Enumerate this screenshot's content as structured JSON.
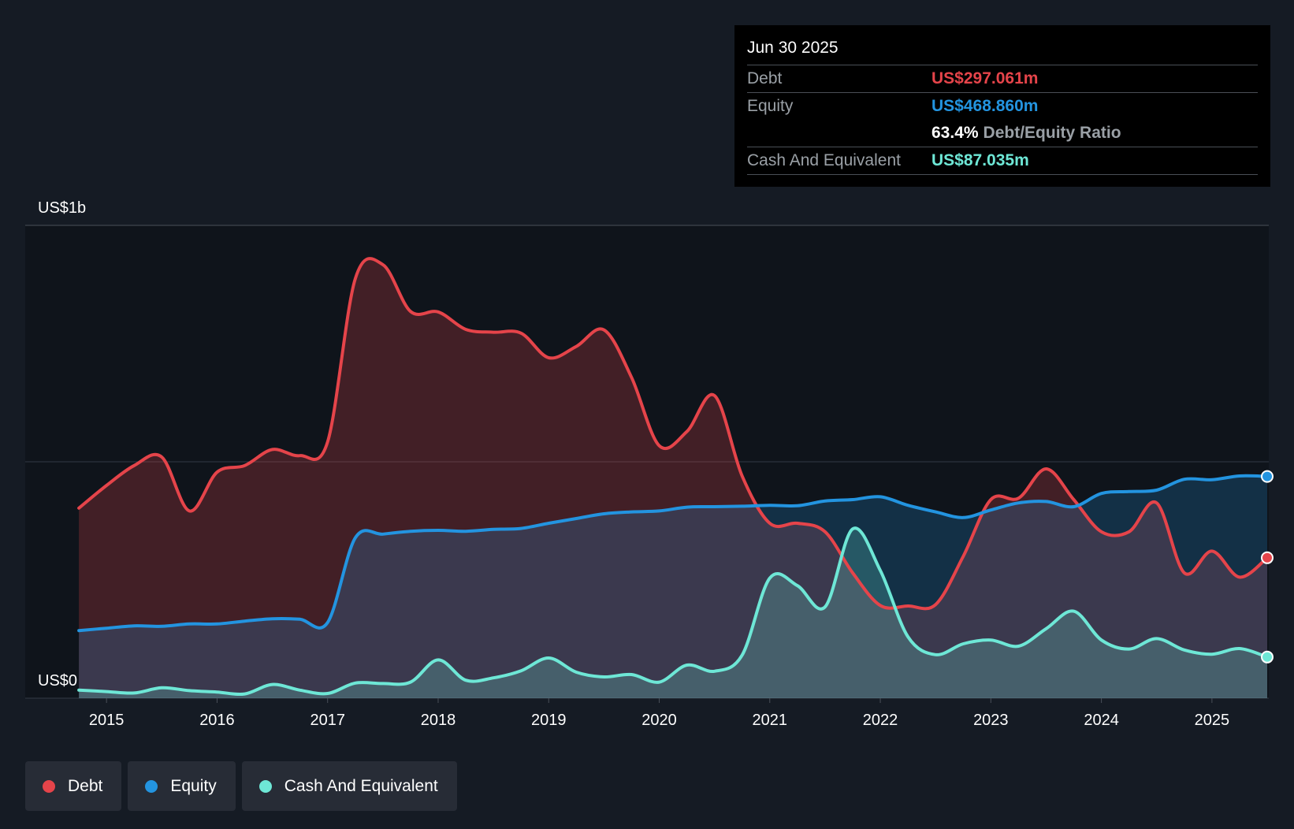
{
  "colors": {
    "debt": "#e5444a",
    "equity": "#2394e0",
    "cash": "#6ee7d6",
    "background": "#151b24",
    "plot_background": "#0f141b"
  },
  "tooltip": {
    "date": "Jun 30 2025",
    "debt_label": "Debt",
    "debt_value": "US$297.061m",
    "equity_label": "Equity",
    "equity_value": "US$468.860m",
    "ratio_value": "63.4%",
    "ratio_label": "Debt/Equity Ratio",
    "cash_label": "Cash And Equivalent",
    "cash_value": "US$87.035m"
  },
  "legend": [
    {
      "key": "debt",
      "label": "Debt"
    },
    {
      "key": "equity",
      "label": "Equity"
    },
    {
      "key": "cash",
      "label": "Cash And Equivalent"
    }
  ],
  "chart_data": {
    "type": "area",
    "title": "",
    "xlabel": "",
    "ylabel": "",
    "y_top_label": "US$1b",
    "y_bottom_label": "US$0",
    "ylim": [
      0,
      1000
    ],
    "xlim": [
      2014.72,
      2025.5
    ],
    "grid": "horizontal",
    "x_ticks": [
      "2015",
      "2016",
      "2017",
      "2018",
      "2019",
      "2020",
      "2021",
      "2022",
      "2023",
      "2024",
      "2025"
    ],
    "series": [
      {
        "name": "Debt",
        "key": "debt",
        "x": [
          2014.75,
          2015.0,
          2015.25,
          2015.5,
          2015.75,
          2016.0,
          2016.25,
          2016.5,
          2016.75,
          2017.0,
          2017.25,
          2017.5,
          2017.75,
          2018.0,
          2018.25,
          2018.5,
          2018.75,
          2019.0,
          2019.25,
          2019.5,
          2019.75,
          2020.0,
          2020.25,
          2020.5,
          2020.75,
          2021.0,
          2021.25,
          2021.5,
          2021.75,
          2022.0,
          2022.25,
          2022.5,
          2022.75,
          2023.0,
          2023.25,
          2023.5,
          2023.75,
          2024.0,
          2024.25,
          2024.5,
          2024.75,
          2025.0,
          2025.25,
          2025.5
        ],
        "values": [
          402,
          450,
          492,
          510,
          396,
          478,
          492,
          526,
          513,
          542,
          887,
          917,
          818,
          817,
          780,
          774,
          772,
          720,
          744,
          779,
          678,
          534,
          564,
          640,
          470,
          370,
          370,
          352,
          265,
          196,
          195,
          198,
          300,
          420,
          423,
          485,
          420,
          352,
          352,
          413,
          265,
          311,
          256,
          297
        ]
      },
      {
        "name": "Equity",
        "key": "equity",
        "x": [
          2014.75,
          2015.0,
          2015.25,
          2015.5,
          2015.75,
          2016.0,
          2016.25,
          2016.5,
          2016.75,
          2017.0,
          2017.25,
          2017.5,
          2017.75,
          2018.0,
          2018.25,
          2018.5,
          2018.75,
          2019.0,
          2019.25,
          2019.5,
          2019.75,
          2020.0,
          2020.25,
          2020.5,
          2020.75,
          2021.0,
          2021.25,
          2021.5,
          2021.75,
          2022.0,
          2022.25,
          2022.5,
          2022.75,
          2023.0,
          2023.25,
          2023.5,
          2023.75,
          2024.0,
          2024.25,
          2024.5,
          2024.75,
          2025.0,
          2025.25,
          2025.5
        ],
        "values": [
          143,
          148,
          153,
          152,
          157,
          157,
          163,
          168,
          167,
          160,
          339,
          347,
          353,
          355,
          353,
          357,
          359,
          370,
          380,
          390,
          394,
          396,
          404,
          405,
          406,
          408,
          407,
          417,
          420,
          426,
          408,
          394,
          382,
          398,
          413,
          416,
          405,
          433,
          437,
          440,
          463,
          462,
          470,
          469
        ]
      },
      {
        "name": "Cash And Equivalent",
        "key": "cash",
        "x": [
          2014.75,
          2015.0,
          2015.25,
          2015.5,
          2015.75,
          2016.0,
          2016.25,
          2016.5,
          2016.75,
          2017.0,
          2017.25,
          2017.5,
          2017.75,
          2018.0,
          2018.25,
          2018.5,
          2018.75,
          2019.0,
          2019.25,
          2019.5,
          2019.75,
          2020.0,
          2020.25,
          2020.5,
          2020.75,
          2021.0,
          2021.25,
          2021.5,
          2021.75,
          2022.0,
          2022.25,
          2022.5,
          2022.75,
          2023.0,
          2023.25,
          2023.5,
          2023.75,
          2024.0,
          2024.25,
          2024.5,
          2024.75,
          2025.0,
          2025.25,
          2025.5
        ],
        "values": [
          17,
          14,
          11,
          22,
          16,
          13,
          9,
          29,
          17,
          10,
          32,
          31,
          34,
          81,
          38,
          43,
          58,
          85,
          55,
          45,
          50,
          34,
          70,
          57,
          91,
          254,
          238,
          193,
          358,
          270,
          130,
          92,
          115,
          123,
          110,
          147,
          184,
          123,
          104,
          126,
          102,
          93,
          105,
          87
        ]
      }
    ]
  }
}
